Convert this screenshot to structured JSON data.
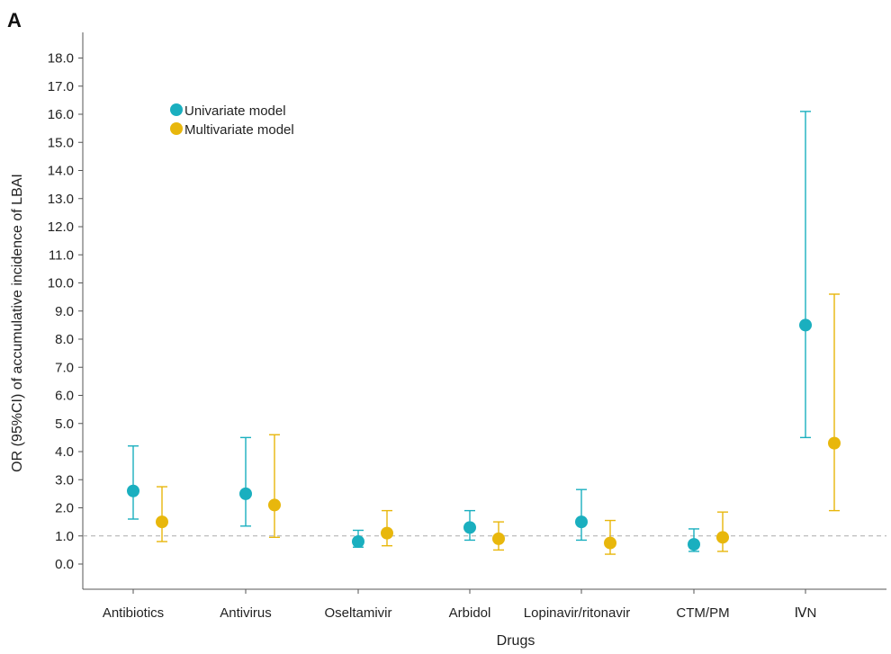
{
  "panel_label": "A",
  "colors": {
    "univariate": "#1AAFBF",
    "multivariate": "#E8B70C",
    "axis": "#555555",
    "reference_line": "#aaaaaa"
  },
  "chart_data": {
    "type": "scatter",
    "title": "",
    "xlabel": "Drugs",
    "ylabel": "OR (95%CI) of accumulative incidence of LBAI",
    "ylim": [
      -1.0,
      19.0
    ],
    "yticks": [
      0.0,
      1.0,
      2.0,
      3.0,
      4.0,
      5.0,
      6.0,
      7.0,
      8.0,
      9.0,
      10.0,
      11.0,
      12.0,
      13.0,
      14.0,
      15.0,
      16.0,
      17.0,
      18.0
    ],
    "ytick_labels": [
      "0.0",
      "1.0",
      "2.0",
      "3.0",
      "4.0",
      "5.0",
      "6.0",
      "7.0",
      "8.0",
      "9.0",
      "10.0",
      "11.0",
      "12.0",
      "13.0",
      "14.0",
      "15.0",
      "16.0",
      "17.0",
      "18.0"
    ],
    "reference_line": 1.0,
    "grid": false,
    "legend_position": "top-left",
    "categories": [
      "Antibiotics",
      "Antivirus",
      "Oseltamivir",
      "Arbidol",
      "Lopinavir/ritonavir",
      "CTM/PM",
      "ⅣN"
    ],
    "series": [
      {
        "name": "Univariate model",
        "color": "#1AAFBF",
        "estimate": [
          2.6,
          2.5,
          0.8,
          1.3,
          1.5,
          0.7,
          8.5
        ],
        "ci_lower": [
          1.6,
          1.35,
          0.6,
          0.85,
          0.85,
          0.45,
          4.5
        ],
        "ci_upper": [
          4.2,
          4.5,
          1.2,
          1.9,
          2.65,
          1.25,
          16.1
        ]
      },
      {
        "name": "Multivariate model",
        "color": "#E8B70C",
        "estimate": [
          1.5,
          2.1,
          1.1,
          0.9,
          0.75,
          0.95,
          4.3
        ],
        "ci_lower": [
          0.8,
          0.95,
          0.65,
          0.5,
          0.35,
          0.45,
          1.9
        ],
        "ci_upper": [
          2.75,
          4.6,
          1.9,
          1.5,
          1.55,
          1.85,
          9.6
        ]
      }
    ]
  }
}
